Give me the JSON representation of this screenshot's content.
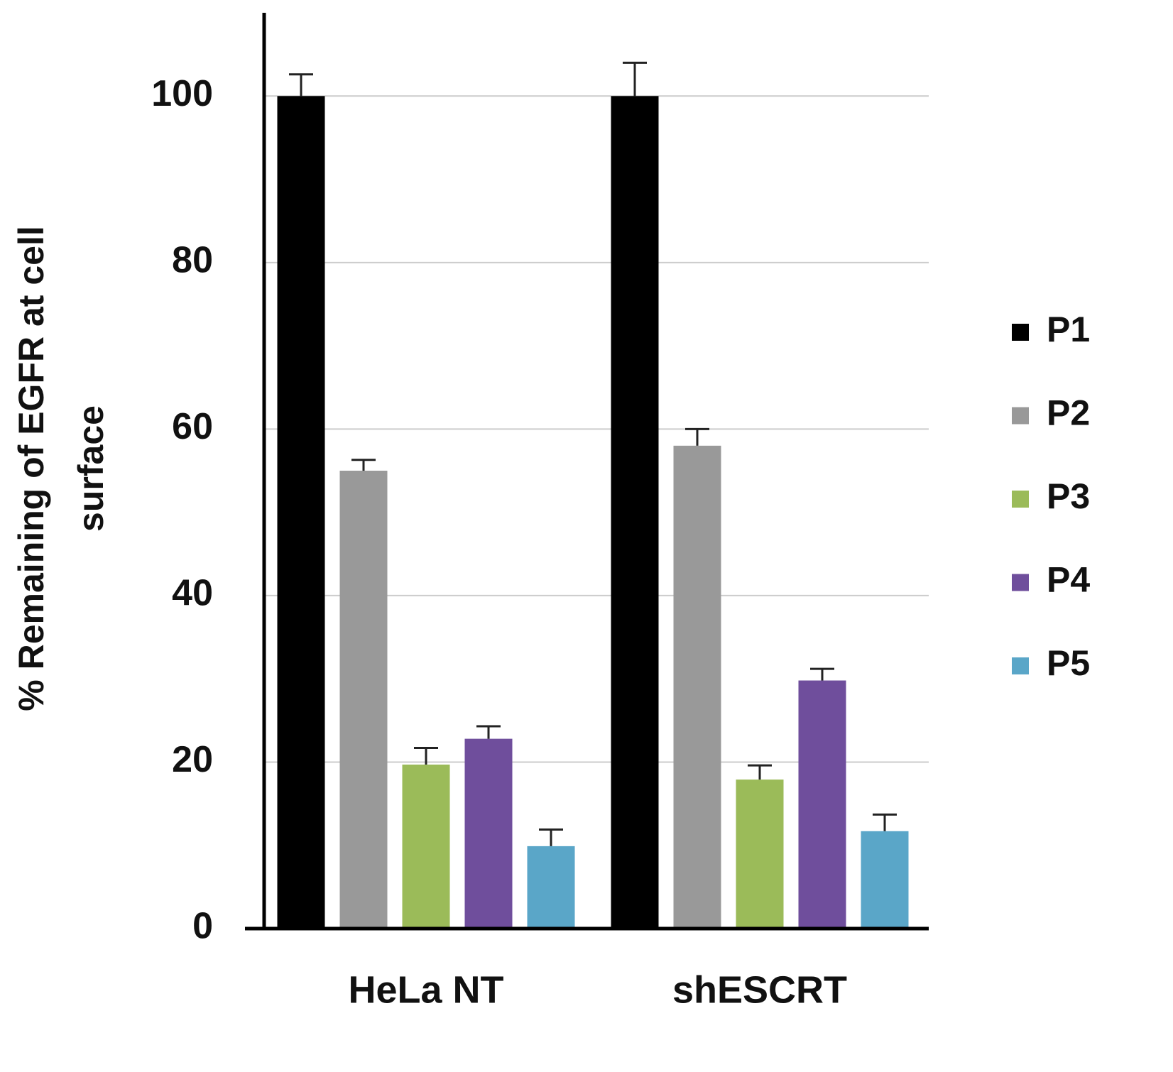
{
  "chart_data": {
    "type": "bar",
    "ylabel": [
      "% Remaining of EGFR at cell",
      "surface"
    ],
    "categories": [
      "HeLa NT",
      "shESCRT"
    ],
    "series": [
      {
        "name": "P1",
        "color": "#000000",
        "values": [
          100,
          100
        ],
        "errors": [
          2.6,
          4
        ]
      },
      {
        "name": "P2",
        "color": "#999999",
        "values": [
          55,
          58
        ],
        "errors": [
          1.3,
          2
        ]
      },
      {
        "name": "P3",
        "color": "#9bbb59",
        "values": [
          19.7,
          17.9
        ],
        "errors": [
          2,
          1.7
        ]
      },
      {
        "name": "P4",
        "color": "#6f4e9c",
        "values": [
          22.8,
          29.8
        ],
        "errors": [
          1.5,
          1.4
        ]
      },
      {
        "name": "P5",
        "color": "#5aa6c8",
        "values": [
          9.9,
          11.7
        ],
        "errors": [
          2,
          2
        ]
      }
    ],
    "ylim": [
      0,
      110
    ],
    "yticks": [
      0,
      20,
      40,
      60,
      80,
      100
    ],
    "grid": true,
    "legend": "right"
  }
}
